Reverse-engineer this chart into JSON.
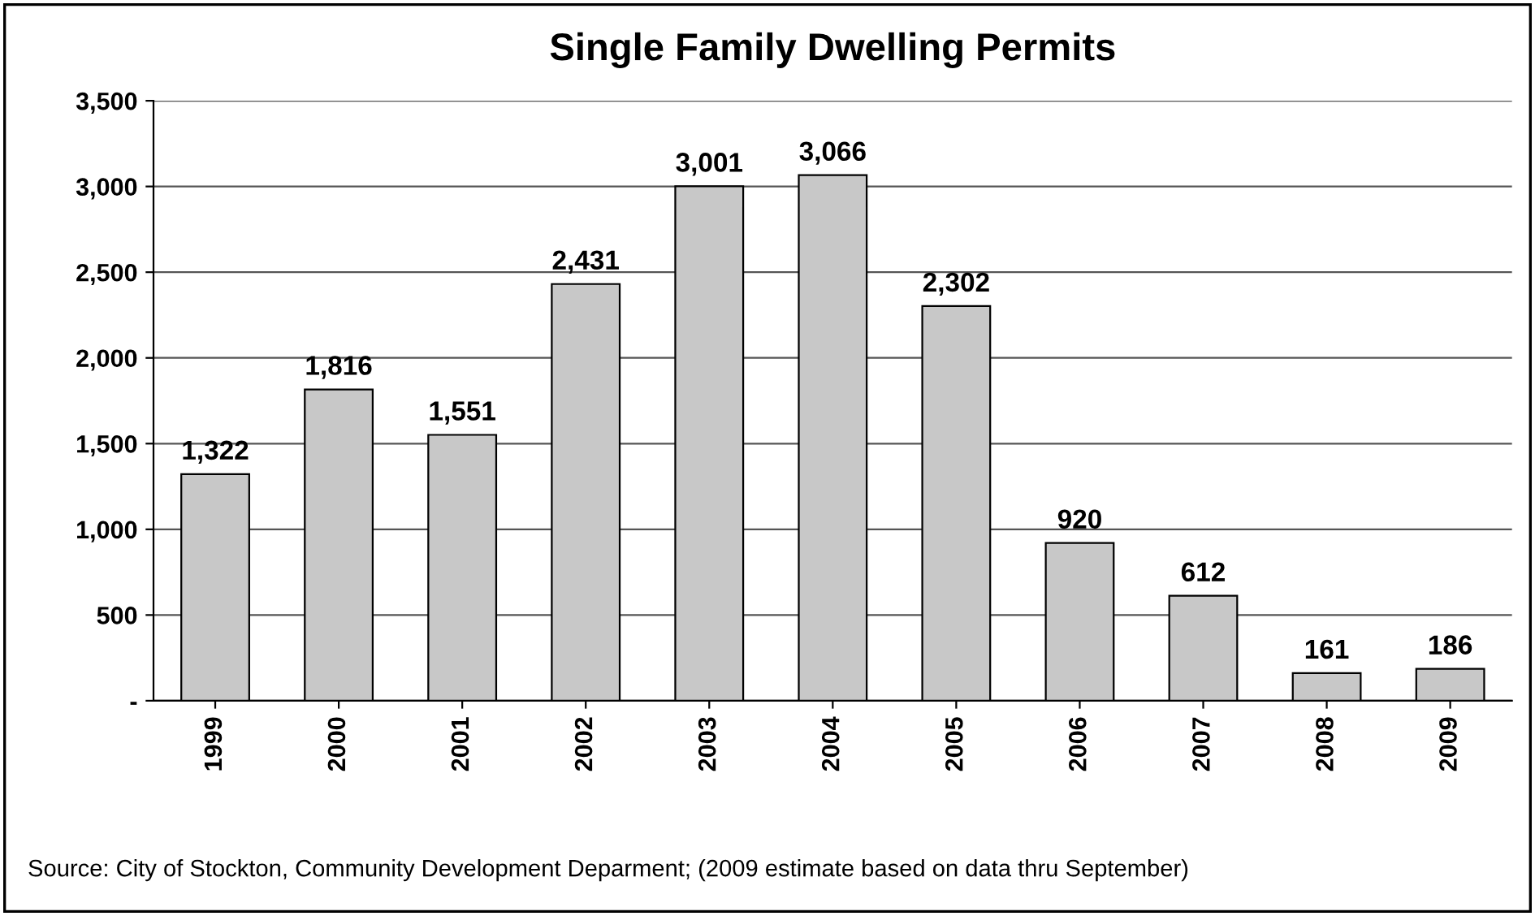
{
  "chart_data": {
    "type": "bar",
    "title": "Single Family Dwelling Permits",
    "categories": [
      "1999",
      "2000",
      "2001",
      "2002",
      "2003",
      "2004",
      "2005",
      "2006",
      "2007",
      "2008",
      "2009"
    ],
    "values": [
      1322,
      1816,
      1551,
      2431,
      3001,
      3066,
      2302,
      920,
      612,
      161,
      186
    ],
    "value_labels": [
      "1,322",
      "1,816",
      "1,551",
      "2,431",
      "3,001",
      "3,066",
      "2,302",
      "920",
      "612",
      "161",
      "186"
    ],
    "color": "#c8c8c8",
    "ylim": [
      0,
      3500
    ],
    "yticks": [
      {
        "value": 0,
        "label": "-"
      },
      {
        "value": 500,
        "label": "500"
      },
      {
        "value": 1000,
        "label": "1,000"
      },
      {
        "value": 1500,
        "label": "1,500"
      },
      {
        "value": 2000,
        "label": "2,000"
      },
      {
        "value": 2500,
        "label": "2,500"
      },
      {
        "value": 3000,
        "label": "3,000"
      },
      {
        "value": 3500,
        "label": "3,500"
      }
    ],
    "grid": "y",
    "annotations": [
      "Source: City of Stockton, Community Development Deparment; (2009 estimate based on data thru September)"
    ]
  }
}
